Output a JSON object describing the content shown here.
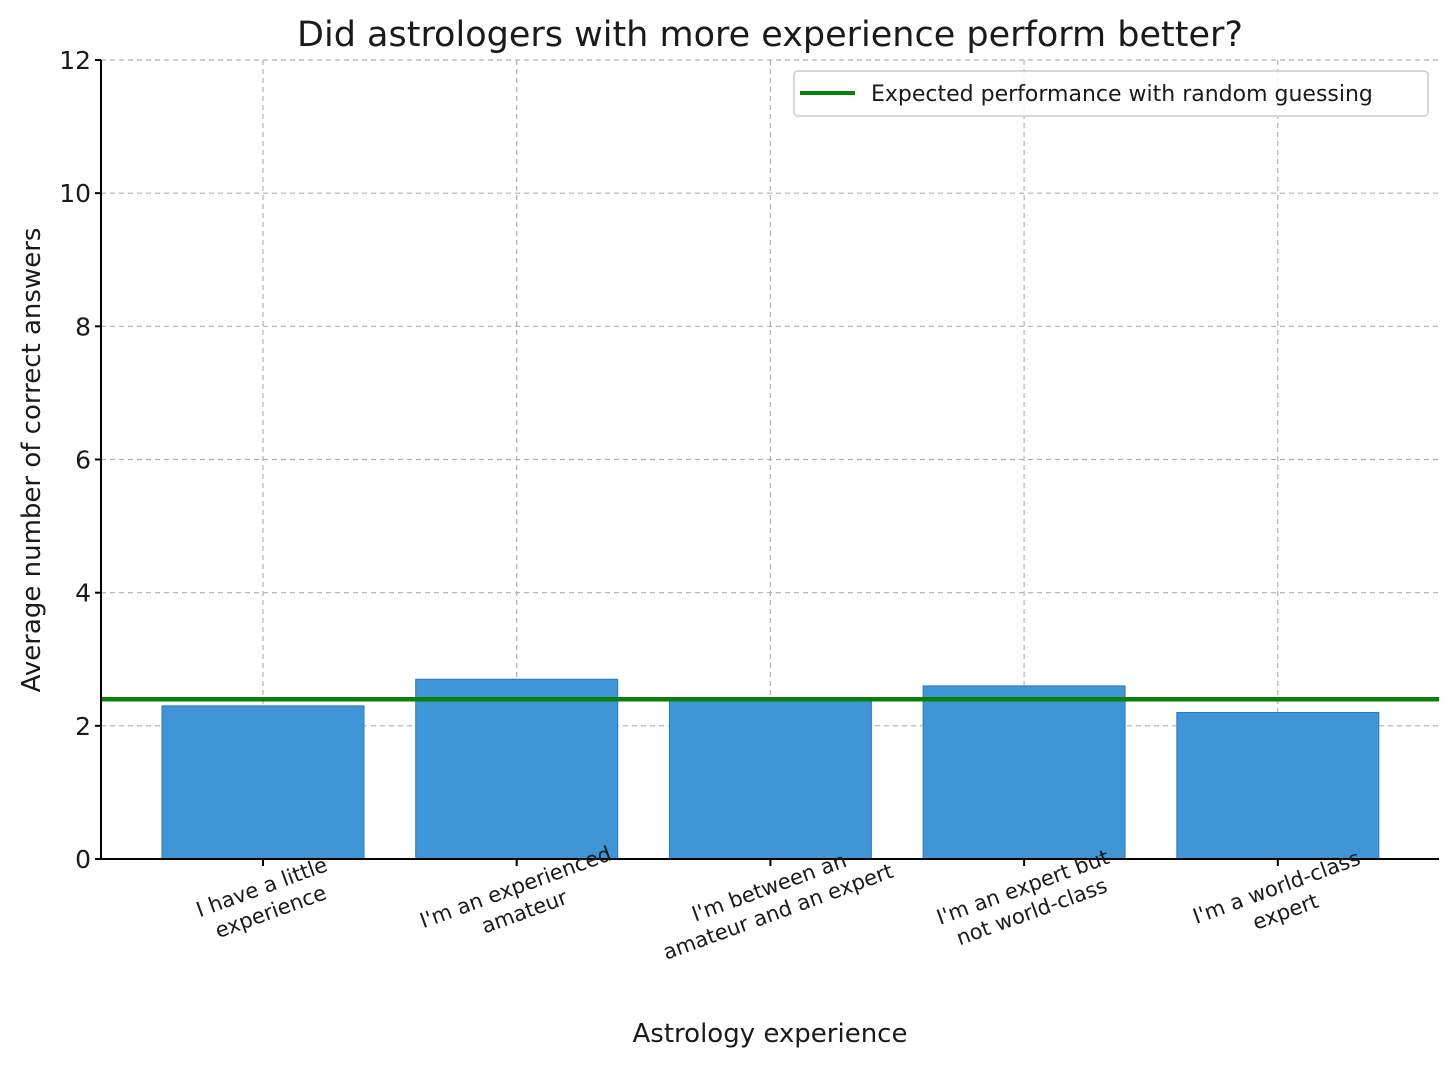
{
  "chart_data": {
    "type": "bar",
    "title": "Did astrologers with more experience perform better?",
    "xlabel": "Astrology experience",
    "ylabel": "Average number of correct answers",
    "categories": [
      [
        "I have a little",
        "experience"
      ],
      [
        "I'm an experienced",
        "amateur"
      ],
      [
        "I'm between an",
        "amateur and an expert"
      ],
      [
        "I'm an expert but",
        "not world-class"
      ],
      [
        "I'm a world-class",
        "expert"
      ]
    ],
    "values": [
      2.3,
      2.7,
      2.4,
      2.6,
      2.2
    ],
    "reference_line": {
      "label": "Expected performance with random guessing",
      "value": 2.4,
      "color": "#0a7f0a"
    },
    "ylim": [
      0,
      12
    ],
    "yticks": [
      "0",
      "2",
      "4",
      "6",
      "8",
      "10",
      "12"
    ],
    "grid": true,
    "legend_position": "top-right",
    "bar_color": "#3f95d6"
  }
}
